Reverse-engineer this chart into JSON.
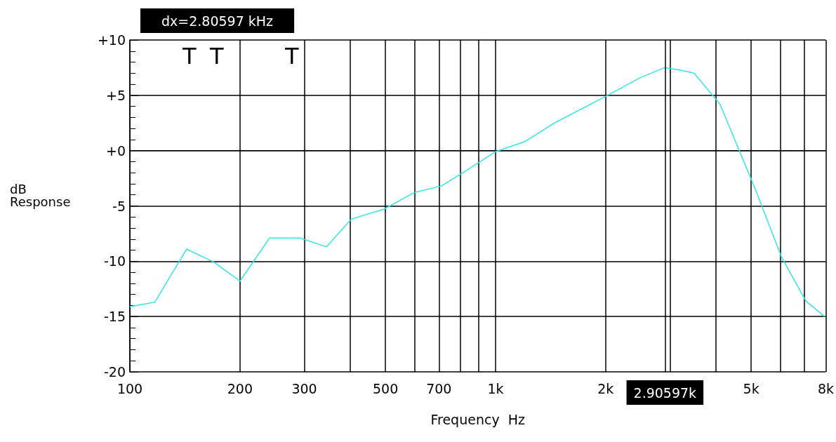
{
  "chart_data": {
    "type": "line",
    "xlabel": "Frequency  Hz",
    "ylabel": "dB Response",
    "x": [
      100,
      117,
      143,
      170,
      200,
      241,
      292,
      345,
      403,
      495,
      598,
      711,
      823,
      1000,
      1200,
      1450,
      2000,
      2490,
      2900,
      3170,
      3490,
      4110,
      5120,
      6050,
      7060,
      7940
    ],
    "series": [
      {
        "color": "#33e6e6",
        "values": [
          -14.1,
          -13.7,
          -8.9,
          -10.1,
          -11.8,
          -7.9,
          -7.9,
          -8.7,
          -6.2,
          -5.3,
          -3.8,
          -3.2,
          -1.9,
          -0.1,
          0.8,
          2.5,
          4.9,
          6.6,
          7.5,
          7.3,
          7.0,
          4.2,
          -3.4,
          -9.6,
          -13.6,
          -15.0
        ]
      }
    ],
    "log": "x",
    "xlim": [
      100,
      8000
    ],
    "ylim": [
      -20,
      10
    ],
    "xticks": [
      100,
      {
        "value": 200,
        "label": "200"
      },
      {
        "value": 300,
        "label": "300"
      },
      {
        "value": 400,
        "label": null
      },
      {
        "value": 500,
        "label": "500"
      },
      {
        "value": 600,
        "label": null
      },
      {
        "value": 700,
        "label": "700"
      },
      {
        "value": 800,
        "label": null
      },
      {
        "value": 900,
        "label": null
      },
      {
        "value": 1000,
        "label": "1k"
      },
      {
        "value": 2000,
        "label": "2k"
      },
      {
        "value": 3000,
        "label": null
      },
      {
        "value": 4000,
        "label": null
      },
      {
        "value": 5000,
        "label": "5k"
      },
      {
        "value": 6000,
        "label": null
      },
      {
        "value": 7000,
        "label": null
      },
      {
        "value": 8000,
        "label": "8k"
      }
    ],
    "yticks": [
      {
        "value": -20,
        "label": "-20"
      },
      {
        "value": -15,
        "label": "-15"
      },
      {
        "value": -10,
        "label": "-10"
      },
      {
        "value": -5,
        "label": "-5"
      },
      {
        "value": 0,
        "label": "+0"
      },
      {
        "value": 5,
        "label": "+5"
      },
      {
        "value": 10,
        "label": "+10"
      }
    ],
    "grid": true,
    "marker": "none",
    "line_style": "solid",
    "ref_lines": [
      {
        "axis": "x",
        "value": 2906,
        "label": "2.90597k",
        "color": "#000000"
      }
    ],
    "annotations": [
      "dx=2.80597 kHz",
      "T",
      "T",
      "T"
    ]
  }
}
